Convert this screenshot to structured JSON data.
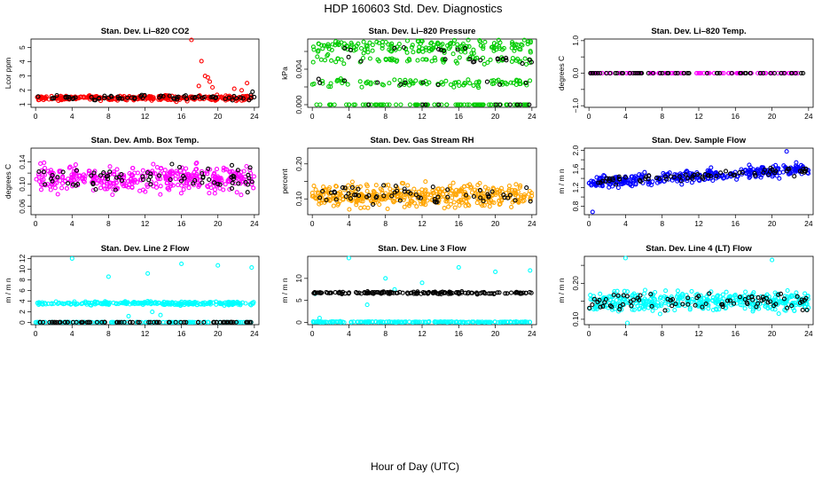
{
  "figure": {
    "title": "HDP  160603  Std. Dev. Diagnostics",
    "xlabel": "Hour of Day (UTC)"
  },
  "chart_data": [
    {
      "type": "scatter",
      "title": "Stan. Dev. Li–820 CO2",
      "ylabel": "Lcor ppm",
      "xlim": [
        -0.5,
        24.5
      ],
      "ylim": [
        0.8,
        5.6
      ],
      "xticks": [
        0,
        4,
        8,
        12,
        16,
        20,
        24
      ],
      "xtick_labels": [
        "0",
        "4",
        "8",
        "12",
        "16",
        "20",
        "24"
      ],
      "yticks": [
        1,
        2,
        3,
        4,
        5
      ],
      "ytick_labels": [
        "1",
        "2",
        "3",
        "4",
        "5"
      ],
      "series": [
        {
          "name": "primary",
          "color": "#ff0000",
          "band": {
            "center": 1.45,
            "spread": 0.16,
            "count": 300
          },
          "x": [
            17.1,
            18.2,
            18.6,
            18.9,
            19.1,
            17.9,
            19.4,
            23.2,
            21.8,
            22.6
          ],
          "y": [
            5.55,
            4.05,
            3.0,
            2.9,
            2.6,
            2.3,
            2.2,
            2.5,
            2.1,
            2.0
          ]
        },
        {
          "name": "secondary",
          "color": "#000000",
          "band": {
            "center": 1.5,
            "spread": 0.18,
            "count": 70
          },
          "x": [
            23.8
          ],
          "y": [
            1.9
          ]
        }
      ]
    },
    {
      "type": "scatter",
      "title": "Stan. Dev. Li–820 Pressure",
      "ylabel": "kPa",
      "xlim": [
        -0.5,
        24.5
      ],
      "ylim": [
        -0.0003,
        0.0074
      ],
      "xticks": [
        0,
        4,
        8,
        12,
        16,
        20,
        24
      ],
      "xtick_labels": [
        "0",
        "4",
        "8",
        "12",
        "16",
        "20",
        "24"
      ],
      "yticks": [
        0.0,
        0.002,
        0.004,
        0.006
      ],
      "ytick_labels": [
        "0.000",
        "",
        "0.004",
        ""
      ],
      "series": [
        {
          "name": "primary",
          "color": "#00cc00",
          "levels": [
            0.0,
            0.0025,
            0.005,
            0.0062,
            0.0068
          ],
          "count": 420
        },
        {
          "name": "secondary",
          "color": "#000000",
          "levels": [
            0.0,
            0.0025,
            0.005,
            0.0062
          ],
          "count": 45
        }
      ]
    },
    {
      "type": "scatter",
      "title": "Stan. Dev. Li–820 Temp.",
      "ylabel": "degrees C",
      "xlim": [
        -0.5,
        24.5
      ],
      "ylim": [
        -1.05,
        1.05
      ],
      "xticks": [
        0,
        4,
        8,
        12,
        16,
        20,
        24
      ],
      "xtick_labels": [
        "0",
        "4",
        "8",
        "12",
        "16",
        "20",
        "24"
      ],
      "yticks": [
        -1.0,
        -0.5,
        0.0,
        0.5,
        1.0
      ],
      "ytick_labels": [
        "−1.0",
        "",
        "0.0",
        "",
        "1.0"
      ],
      "series": [
        {
          "name": "primary",
          "color": "#ff00ff",
          "band": {
            "center": 0.0,
            "spread": 0.0,
            "count": 90
          }
        },
        {
          "name": "secondary",
          "color": "#000000",
          "band": {
            "center": 0.0,
            "spread": 0.0,
            "count": 60
          }
        }
      ]
    },
    {
      "type": "scatter",
      "title": "Stan. Dev. Amb. Box Temp.",
      "ylabel": "degrees C",
      "xlim": [
        -0.5,
        24.5
      ],
      "ylim": [
        0.045,
        0.165
      ],
      "xticks": [
        0,
        4,
        8,
        12,
        16,
        20,
        24
      ],
      "xtick_labels": [
        "0",
        "4",
        "8",
        "12",
        "16",
        "20",
        "24"
      ],
      "yticks": [
        0.06,
        0.08,
        0.1,
        0.12,
        0.14
      ],
      "ytick_labels": [
        "0.06",
        "",
        "0.10",
        "",
        "0.14"
      ],
      "series": [
        {
          "name": "primary",
          "color": "#ff00ff",
          "band": {
            "center": 0.11,
            "spread": 0.022,
            "count": 380
          }
        },
        {
          "name": "secondary",
          "color": "#000000",
          "band": {
            "center": 0.11,
            "spread": 0.02,
            "count": 70
          }
        }
      ]
    },
    {
      "type": "scatter",
      "title": "Stan. Dev. Gas Stream RH",
      "ylabel": "percent",
      "xlim": [
        -0.5,
        24.5
      ],
      "ylim": [
        0.055,
        0.245
      ],
      "xticks": [
        0,
        4,
        8,
        12,
        16,
        20,
        24
      ],
      "xtick_labels": [
        "0",
        "4",
        "8",
        "12",
        "16",
        "20",
        "24"
      ],
      "yticks": [
        0.1,
        0.15,
        0.2
      ],
      "ytick_labels": [
        "0.10",
        "",
        "0.20"
      ],
      "series": [
        {
          "name": "primary",
          "color": "#ffa500",
          "band": {
            "center": 0.11,
            "spread": 0.028,
            "count": 420
          }
        },
        {
          "name": "secondary",
          "color": "#000000",
          "band": {
            "center": 0.11,
            "spread": 0.025,
            "count": 60
          }
        }
      ]
    },
    {
      "type": "scatter",
      "title": "Stan. Dev. Sample Flow",
      "ylabel": "m / m n",
      "xlim": [
        -0.5,
        24.5
      ],
      "ylim": [
        0.62,
        2.05
      ],
      "xticks": [
        0,
        4,
        8,
        12,
        16,
        20,
        24
      ],
      "xtick_labels": [
        "0",
        "4",
        "8",
        "12",
        "16",
        "20",
        "24"
      ],
      "yticks": [
        0.8,
        1.0,
        1.2,
        1.4,
        1.6,
        1.8,
        2.0
      ],
      "ytick_labels": [
        "0.8",
        "",
        "1.2",
        "",
        "1.6",
        "",
        "2.0"
      ],
      "series": [
        {
          "name": "primary",
          "color": "#0000ff",
          "band": {
            "center": 1.45,
            "spread": 0.12,
            "count": 340,
            "trend": 0.012
          },
          "x": [
            0.4,
            21.6
          ],
          "y": [
            0.68,
            1.98
          ]
        },
        {
          "name": "secondary",
          "color": "#000000",
          "band": {
            "center": 1.45,
            "spread": 0.08,
            "count": 70,
            "trend": 0.01
          }
        }
      ]
    },
    {
      "type": "scatter",
      "title": "Stan. Dev. Line 2 Flow",
      "ylabel": "m / m n",
      "xlim": [
        -0.5,
        24.5
      ],
      "ylim": [
        -0.4,
        12.4
      ],
      "xticks": [
        0,
        4,
        8,
        12,
        16,
        20,
        24
      ],
      "xtick_labels": [
        "0",
        "4",
        "8",
        "12",
        "16",
        "20",
        "24"
      ],
      "yticks": [
        0,
        2,
        4,
        6,
        8,
        10,
        12
      ],
      "ytick_labels": [
        "0",
        "2",
        "4",
        "6",
        "8",
        "10",
        "12"
      ],
      "series": [
        {
          "name": "primary",
          "color": "#00ffff",
          "band": {
            "center": 3.6,
            "spread": 0.3,
            "count": 240
          },
          "x": [
            4.0,
            8.0,
            12.3,
            16.0,
            20.0,
            23.7,
            10.2,
            12.8,
            13.7
          ],
          "y": [
            12.0,
            8.6,
            9.2,
            11.0,
            10.7,
            10.3,
            1.2,
            2.0,
            1.4
          ]
        },
        {
          "name": "tertiary",
          "color": "#00ffff",
          "band": {
            "center": 0.05,
            "spread": 0.0,
            "count": 120
          }
        },
        {
          "name": "secondary",
          "color": "#000000",
          "band": {
            "center": 0.05,
            "spread": 0.0,
            "count": 80
          }
        }
      ]
    },
    {
      "type": "scatter",
      "title": "Stan. Dev. Line 3 Flow",
      "ylabel": "m / m n",
      "xlim": [
        -0.5,
        24.5
      ],
      "ylim": [
        -0.5,
        15.0
      ],
      "xticks": [
        0,
        4,
        8,
        12,
        16,
        20,
        24
      ],
      "xtick_labels": [
        "0",
        "4",
        "8",
        "12",
        "16",
        "20",
        "24"
      ],
      "yticks": [
        0,
        5,
        10
      ],
      "ytick_labels": [
        "0",
        "5",
        "10"
      ],
      "series": [
        {
          "name": "primary",
          "color": "#00ffff",
          "band": {
            "center": 0.1,
            "spread": 0.1,
            "count": 200
          },
          "x": [
            4.0,
            8.0,
            12.0,
            16.0,
            20.0,
            23.8,
            0.3,
            0.8,
            6.0,
            9.0
          ],
          "y": [
            14.6,
            10.0,
            9.0,
            12.5,
            11.5,
            11.8,
            6.5,
            1.0,
            4.0,
            7.5
          ]
        },
        {
          "name": "secondary",
          "color": "#000000",
          "band": {
            "center": 6.7,
            "spread": 0.25,
            "count": 150
          }
        }
      ]
    },
    {
      "type": "scatter",
      "title": "Stan. Dev. Line 4 (LT) Flow",
      "ylabel": "m / m n",
      "xlim": [
        -0.5,
        24.5
      ],
      "ylim": [
        0.085,
        0.275
      ],
      "xticks": [
        0,
        4,
        8,
        12,
        16,
        20,
        24
      ],
      "xtick_labels": [
        "0",
        "4",
        "8",
        "12",
        "16",
        "20",
        "24"
      ],
      "yticks": [
        0.1,
        0.15,
        0.2,
        0.25
      ],
      "ytick_labels": [
        "0.10",
        "",
        "0.20",
        ""
      ],
      "series": [
        {
          "name": "primary",
          "color": "#00ffff",
          "band": {
            "center": 0.15,
            "spread": 0.025,
            "count": 420
          },
          "x": [
            4.0,
            20.0,
            4.2
          ],
          "y": [
            0.27,
            0.265,
            0.09
          ]
        },
        {
          "name": "secondary",
          "color": "#000000",
          "band": {
            "center": 0.15,
            "spread": 0.022,
            "count": 80
          }
        }
      ]
    }
  ]
}
